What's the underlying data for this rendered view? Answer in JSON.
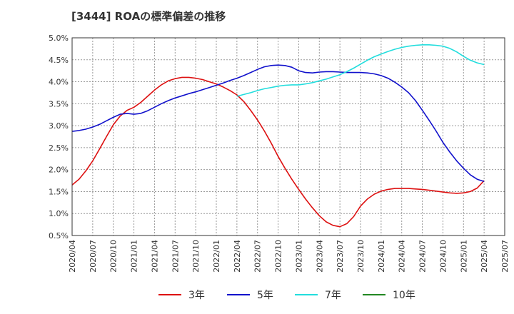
{
  "chart_data": {
    "type": "line",
    "title": "[3444]  ROAの標準偏差の推移",
    "xlabel": "",
    "ylabel": "",
    "ylim": [
      0.5,
      5.0
    ],
    "yticks": [
      0.5,
      1.0,
      1.5,
      2.0,
      2.5,
      3.0,
      3.5,
      4.0,
      4.5,
      5.0
    ],
    "ytick_labels": [
      "0.5%",
      "1.0%",
      "1.5%",
      "2.0%",
      "2.5%",
      "3.0%",
      "3.5%",
      "4.0%",
      "4.5%",
      "5.0%"
    ],
    "xtick_labels": [
      "2020/04",
      "2020/07",
      "2020/10",
      "2021/01",
      "2021/04",
      "2021/07",
      "2021/10",
      "2022/01",
      "2022/04",
      "2022/07",
      "2022/10",
      "2023/01",
      "2023/04",
      "2023/07",
      "2023/10",
      "2024/01",
      "2024/04",
      "2024/07",
      "2024/10",
      "2025/01",
      "2025/04",
      "2025/07"
    ],
    "grid": true,
    "legend_position": "bottom",
    "series": [
      {
        "name": "3年",
        "color": "#dd1111",
        "points": [
          [
            "2020/04",
            1.65
          ],
          [
            "2020/05",
            1.78
          ],
          [
            "2020/06",
            1.97
          ],
          [
            "2020/07",
            2.2
          ],
          [
            "2020/08",
            2.47
          ],
          [
            "2020/09",
            2.75
          ],
          [
            "2020/10",
            3.02
          ],
          [
            "2020/11",
            3.22
          ],
          [
            "2020/12",
            3.35
          ],
          [
            "2021/01",
            3.42
          ],
          [
            "2021/02",
            3.53
          ],
          [
            "2021/03",
            3.67
          ],
          [
            "2021/04",
            3.81
          ],
          [
            "2021/05",
            3.93
          ],
          [
            "2021/06",
            4.02
          ],
          [
            "2021/07",
            4.07
          ],
          [
            "2021/08",
            4.1
          ],
          [
            "2021/09",
            4.1
          ],
          [
            "2021/10",
            4.08
          ],
          [
            "2021/11",
            4.05
          ],
          [
            "2021/12",
            4.0
          ],
          [
            "2022/01",
            3.95
          ],
          [
            "2022/02",
            3.88
          ],
          [
            "2022/03",
            3.8
          ],
          [
            "2022/04",
            3.7
          ],
          [
            "2022/05",
            3.55
          ],
          [
            "2022/06",
            3.35
          ],
          [
            "2022/07",
            3.13
          ],
          [
            "2022/08",
            2.88
          ],
          [
            "2022/09",
            2.6
          ],
          [
            "2022/10",
            2.3
          ],
          [
            "2022/11",
            2.03
          ],
          [
            "2022/12",
            1.78
          ],
          [
            "2023/01",
            1.55
          ],
          [
            "2023/02",
            1.33
          ],
          [
            "2023/03",
            1.13
          ],
          [
            "2023/04",
            0.95
          ],
          [
            "2023/05",
            0.81
          ],
          [
            "2023/06",
            0.73
          ],
          [
            "2023/07",
            0.7
          ],
          [
            "2023/08",
            0.77
          ],
          [
            "2023/09",
            0.93
          ],
          [
            "2023/10",
            1.17
          ],
          [
            "2023/11",
            1.33
          ],
          [
            "2023/12",
            1.44
          ],
          [
            "2024/01",
            1.51
          ],
          [
            "2024/02",
            1.55
          ],
          [
            "2024/03",
            1.57
          ],
          [
            "2024/04",
            1.57
          ],
          [
            "2024/05",
            1.57
          ],
          [
            "2024/06",
            1.56
          ],
          [
            "2024/07",
            1.55
          ],
          [
            "2024/08",
            1.53
          ],
          [
            "2024/09",
            1.51
          ],
          [
            "2024/10",
            1.49
          ],
          [
            "2024/11",
            1.47
          ],
          [
            "2024/12",
            1.46
          ],
          [
            "2025/01",
            1.47
          ],
          [
            "2025/02",
            1.5
          ],
          [
            "2025/03",
            1.58
          ],
          [
            "2025/04",
            1.75
          ]
        ]
      },
      {
        "name": "5年",
        "color": "#1111cc",
        "points": [
          [
            "2020/04",
            2.87
          ],
          [
            "2020/05",
            2.89
          ],
          [
            "2020/06",
            2.92
          ],
          [
            "2020/07",
            2.97
          ],
          [
            "2020/08",
            3.03
          ],
          [
            "2020/09",
            3.11
          ],
          [
            "2020/10",
            3.19
          ],
          [
            "2020/11",
            3.26
          ],
          [
            "2020/12",
            3.28
          ],
          [
            "2021/01",
            3.26
          ],
          [
            "2021/02",
            3.28
          ],
          [
            "2021/03",
            3.34
          ],
          [
            "2021/04",
            3.42
          ],
          [
            "2021/05",
            3.5
          ],
          [
            "2021/06",
            3.57
          ],
          [
            "2021/07",
            3.63
          ],
          [
            "2021/08",
            3.68
          ],
          [
            "2021/09",
            3.73
          ],
          [
            "2021/10",
            3.77
          ],
          [
            "2021/11",
            3.82
          ],
          [
            "2021/12",
            3.87
          ],
          [
            "2022/01",
            3.92
          ],
          [
            "2022/02",
            3.97
          ],
          [
            "2022/03",
            4.03
          ],
          [
            "2022/04",
            4.08
          ],
          [
            "2022/05",
            4.14
          ],
          [
            "2022/06",
            4.21
          ],
          [
            "2022/07",
            4.28
          ],
          [
            "2022/08",
            4.34
          ],
          [
            "2022/09",
            4.37
          ],
          [
            "2022/10",
            4.38
          ],
          [
            "2022/11",
            4.37
          ],
          [
            "2022/12",
            4.33
          ],
          [
            "2023/01",
            4.25
          ],
          [
            "2023/02",
            4.21
          ],
          [
            "2023/03",
            4.2
          ],
          [
            "2023/04",
            4.22
          ],
          [
            "2023/05",
            4.23
          ],
          [
            "2023/06",
            4.23
          ],
          [
            "2023/07",
            4.22
          ],
          [
            "2023/08",
            4.21
          ],
          [
            "2023/09",
            4.21
          ],
          [
            "2023/10",
            4.21
          ],
          [
            "2023/11",
            4.2
          ],
          [
            "2023/12",
            4.18
          ],
          [
            "2024/01",
            4.14
          ],
          [
            "2024/02",
            4.08
          ],
          [
            "2024/03",
            3.99
          ],
          [
            "2024/04",
            3.88
          ],
          [
            "2024/05",
            3.75
          ],
          [
            "2024/06",
            3.57
          ],
          [
            "2024/07",
            3.35
          ],
          [
            "2024/08",
            3.12
          ],
          [
            "2024/09",
            2.88
          ],
          [
            "2024/10",
            2.62
          ],
          [
            "2024/11",
            2.4
          ],
          [
            "2024/12",
            2.2
          ],
          [
            "2025/01",
            2.03
          ],
          [
            "2025/02",
            1.88
          ],
          [
            "2025/03",
            1.78
          ],
          [
            "2025/04",
            1.73
          ]
        ]
      },
      {
        "name": "7年",
        "color": "#22dddd",
        "points": [
          [
            "2022/04",
            3.67
          ],
          [
            "2022/05",
            3.71
          ],
          [
            "2022/06",
            3.75
          ],
          [
            "2022/07",
            3.8
          ],
          [
            "2022/08",
            3.84
          ],
          [
            "2022/09",
            3.87
          ],
          [
            "2022/10",
            3.9
          ],
          [
            "2022/11",
            3.92
          ],
          [
            "2022/12",
            3.93
          ],
          [
            "2023/01",
            3.93
          ],
          [
            "2023/02",
            3.95
          ],
          [
            "2023/03",
            3.98
          ],
          [
            "2023/04",
            4.02
          ],
          [
            "2023/05",
            4.06
          ],
          [
            "2023/06",
            4.11
          ],
          [
            "2023/07",
            4.16
          ],
          [
            "2023/08",
            4.23
          ],
          [
            "2023/09",
            4.31
          ],
          [
            "2023/10",
            4.4
          ],
          [
            "2023/11",
            4.49
          ],
          [
            "2023/12",
            4.57
          ],
          [
            "2024/01",
            4.63
          ],
          [
            "2024/02",
            4.69
          ],
          [
            "2024/03",
            4.74
          ],
          [
            "2024/04",
            4.78
          ],
          [
            "2024/05",
            4.81
          ],
          [
            "2024/06",
            4.83
          ],
          [
            "2024/07",
            4.84
          ],
          [
            "2024/08",
            4.84
          ],
          [
            "2024/09",
            4.83
          ],
          [
            "2024/10",
            4.81
          ],
          [
            "2024/11",
            4.76
          ],
          [
            "2024/12",
            4.68
          ],
          [
            "2025/01",
            4.58
          ],
          [
            "2025/02",
            4.49
          ],
          [
            "2025/03",
            4.43
          ],
          [
            "2025/04",
            4.39
          ]
        ]
      },
      {
        "name": "10年",
        "color": "#228822",
        "points": []
      }
    ]
  }
}
